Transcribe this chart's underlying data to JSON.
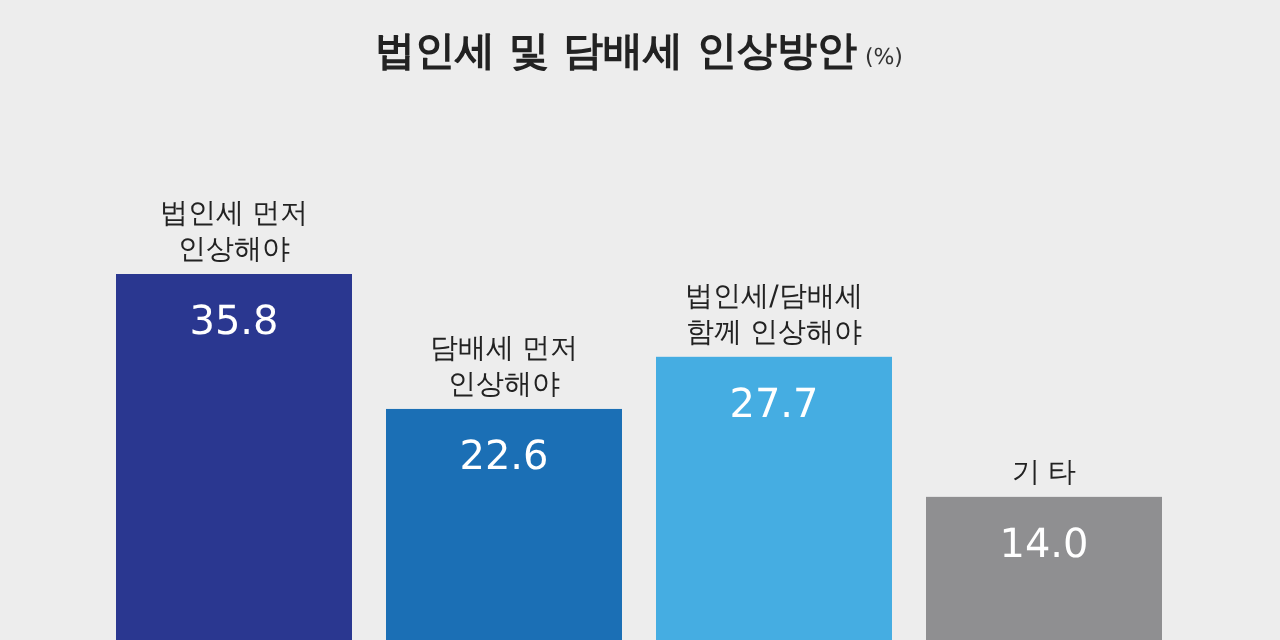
{
  "chart_data": {
    "type": "bar",
    "title": "법인세 및 담배세 인상방안",
    "subtitle": "(%)",
    "categories": [
      "법인세 먼저\n인상해야",
      "담배세 먼저\n인상해야",
      "법인세/담배세\n함께 인상해야",
      "기 타"
    ],
    "values": [
      35.8,
      22.6,
      27.7,
      14.0
    ],
    "colors": [
      "#2a3790",
      "#1b6fb5",
      "#45ade2",
      "#8f8f91"
    ],
    "value_labels": [
      "35.8",
      "22.6",
      "27.7",
      "14.0"
    ]
  }
}
